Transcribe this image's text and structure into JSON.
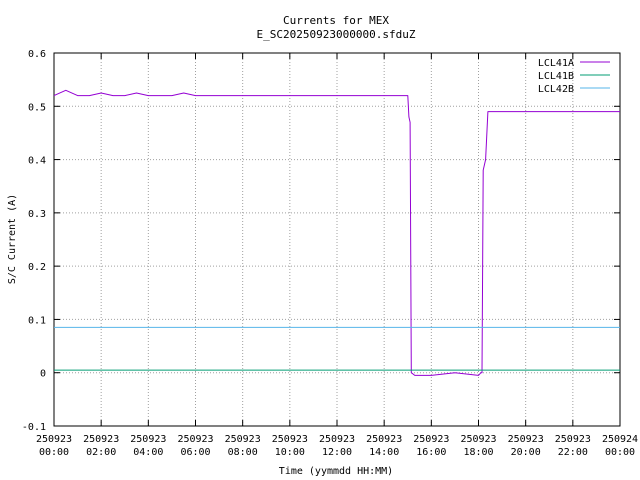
{
  "chart_data": {
    "type": "line",
    "title": "Currents for MEX",
    "subtitle": "E_SC20250923000000.sfduZ",
    "xlabel": "Time (yymmdd HH:MM)",
    "ylabel": "S/C Current (A)",
    "xlim": [
      0,
      24
    ],
    "ylim": [
      -0.1,
      0.6
    ],
    "grid": true,
    "legend_position": "top-right",
    "x_ticks": [
      {
        "value": 0,
        "date": "250923",
        "time": "00:00"
      },
      {
        "value": 2,
        "date": "250923",
        "time": "02:00"
      },
      {
        "value": 4,
        "date": "250923",
        "time": "04:00"
      },
      {
        "value": 6,
        "date": "250923",
        "time": "06:00"
      },
      {
        "value": 8,
        "date": "250923",
        "time": "08:00"
      },
      {
        "value": 10,
        "date": "250923",
        "time": "10:00"
      },
      {
        "value": 12,
        "date": "250923",
        "time": "12:00"
      },
      {
        "value": 14,
        "date": "250923",
        "time": "14:00"
      },
      {
        "value": 16,
        "date": "250923",
        "time": "16:00"
      },
      {
        "value": 18,
        "date": "250923",
        "time": "18:00"
      },
      {
        "value": 20,
        "date": "250923",
        "time": "20:00"
      },
      {
        "value": 22,
        "date": "250923",
        "time": "22:00"
      },
      {
        "value": 24,
        "date": "250924",
        "time": "00:00"
      }
    ],
    "y_ticks": [
      "-0.1",
      "0",
      "0.1",
      "0.2",
      "0.3",
      "0.4",
      "0.5",
      "0.6"
    ],
    "series": [
      {
        "name": "LCL41A",
        "color": "#9400d3",
        "x": [
          0,
          0.5,
          1,
          1.5,
          2,
          2.5,
          3,
          3.5,
          4,
          4.5,
          5,
          5.5,
          6,
          6.5,
          7,
          7.5,
          8,
          8.5,
          9,
          9.5,
          10,
          10.5,
          11,
          11.5,
          12,
          12.5,
          13,
          13.5,
          14,
          14.5,
          14.9,
          15.0,
          15.05,
          15.1,
          15.15,
          15.3,
          16,
          17,
          18,
          18.1,
          18.15,
          18.2,
          18.3,
          18.4,
          18.5,
          19,
          19.5,
          20,
          20.5,
          21,
          21.5,
          22,
          22.5,
          23,
          23.5,
          24
        ],
        "y": [
          0.52,
          0.53,
          0.52,
          0.52,
          0.525,
          0.52,
          0.52,
          0.525,
          0.52,
          0.52,
          0.52,
          0.525,
          0.52,
          0.52,
          0.52,
          0.52,
          0.52,
          0.52,
          0.52,
          0.52,
          0.52,
          0.52,
          0.52,
          0.52,
          0.52,
          0.52,
          0.52,
          0.52,
          0.52,
          0.52,
          0.52,
          0.52,
          0.48,
          0.47,
          0.0,
          -0.005,
          -0.005,
          0.0,
          -0.005,
          0.0,
          0.0,
          0.38,
          0.4,
          0.49,
          0.49,
          0.49,
          0.49,
          0.49,
          0.49,
          0.49,
          0.49,
          0.49,
          0.49,
          0.49,
          0.49,
          0.49
        ]
      },
      {
        "name": "LCL41B",
        "color": "#009e73",
        "x": [
          0,
          2,
          4,
          6,
          8,
          10,
          12,
          14,
          15,
          15.15,
          16,
          17,
          18,
          18.2,
          20,
          22,
          24
        ],
        "y": [
          0.005,
          0.005,
          0.005,
          0.005,
          0.005,
          0.005,
          0.005,
          0.005,
          0.005,
          0.005,
          0.005,
          0.005,
          0.005,
          0.005,
          0.005,
          0.005,
          0.005
        ]
      },
      {
        "name": "LCL42B",
        "color": "#56b4e9",
        "x": [
          0,
          2,
          4,
          6,
          8,
          10,
          12,
          14,
          16,
          18,
          20,
          22,
          24
        ],
        "y": [
          0.085,
          0.085,
          0.085,
          0.085,
          0.085,
          0.085,
          0.085,
          0.085,
          0.085,
          0.085,
          0.085,
          0.085,
          0.085
        ]
      }
    ]
  }
}
